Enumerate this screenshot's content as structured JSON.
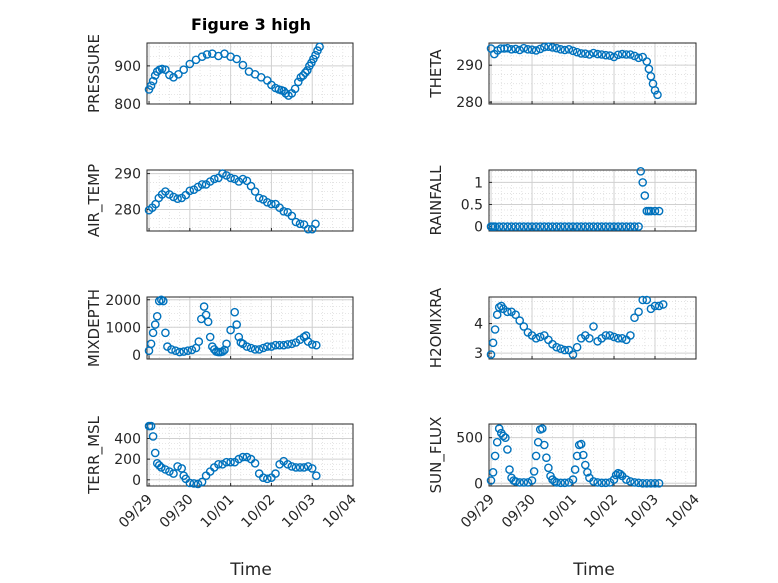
{
  "figure": {
    "title": "Figure 3 high",
    "xlabel": "Time",
    "x_ticks": [
      "09/29",
      "09/30",
      "10/01",
      "10/02",
      "10/03",
      "10/04"
    ],
    "marker_color": "#0072BD",
    "grid_color": "#dedede"
  },
  "chart_data": [
    {
      "type": "scatter",
      "ylabel": "PRESSURE",
      "ylim": [
        800,
        960
      ],
      "yticks": [
        "800",
        "900"
      ],
      "ytick_values": [
        800,
        900
      ],
      "x": [
        0.0,
        0.05,
        0.1,
        0.15,
        0.2,
        0.26,
        0.32,
        0.4,
        0.5,
        0.6,
        0.72,
        0.85,
        1.0,
        1.15,
        1.3,
        1.42,
        1.55,
        1.7,
        1.85,
        2.0,
        2.15,
        2.3,
        2.45,
        2.6,
        2.75,
        2.9,
        3.0,
        3.1,
        3.18,
        3.25,
        3.3,
        3.35,
        3.42,
        3.5,
        3.58,
        3.66,
        3.72,
        3.78,
        3.83,
        3.88,
        3.93,
        3.98,
        4.03,
        4.08,
        4.13,
        4.18
      ],
      "y": [
        838,
        848,
        860,
        875,
        885,
        890,
        892,
        890,
        876,
        870,
        878,
        890,
        905,
        916,
        924,
        930,
        932,
        926,
        932,
        924,
        918,
        902,
        885,
        878,
        870,
        862,
        850,
        842,
        838,
        836,
        834,
        828,
        822,
        828,
        840,
        858,
        870,
        875,
        882,
        888,
        900,
        908,
        918,
        928,
        940,
        950
      ]
    },
    {
      "type": "scatter",
      "ylabel": "THETA",
      "ylim": [
        279.5,
        296
      ],
      "yticks": [
        "280",
        "290"
      ],
      "ytick_values": [
        280,
        290
      ],
      "x": [
        0.0,
        0.08,
        0.16,
        0.24,
        0.32,
        0.4,
        0.5,
        0.6,
        0.7,
        0.8,
        0.9,
        1.0,
        1.1,
        1.2,
        1.3,
        1.4,
        1.5,
        1.6,
        1.7,
        1.8,
        1.9,
        2.0,
        2.1,
        2.2,
        2.3,
        2.4,
        2.5,
        2.6,
        2.7,
        2.8,
        2.9,
        3.0,
        3.1,
        3.2,
        3.3,
        3.4,
        3.5,
        3.6,
        3.7,
        3.8,
        3.85,
        3.9,
        3.95,
        4.0,
        4.06
      ],
      "y": [
        294.5,
        293.0,
        294.0,
        294.5,
        294.5,
        294.6,
        294.3,
        294.4,
        294.1,
        294.6,
        294.3,
        294.2,
        294.0,
        294.4,
        294.9,
        295.0,
        294.8,
        294.6,
        294.3,
        294.1,
        294.3,
        293.9,
        293.5,
        293.2,
        293.1,
        292.9,
        293.3,
        293.0,
        292.9,
        292.7,
        292.6,
        292.2,
        292.8,
        293.0,
        292.9,
        292.9,
        292.5,
        292.0,
        292.2,
        291.0,
        289.0,
        287.0,
        285.0,
        283.2,
        282.0
      ]
    },
    {
      "type": "scatter",
      "ylabel": "AIR_TEMP",
      "ylim": [
        274,
        291
      ],
      "yticks": [
        "280",
        "290"
      ],
      "ytick_values": [
        280,
        290
      ],
      "x": [
        0.0,
        0.08,
        0.16,
        0.24,
        0.32,
        0.4,
        0.5,
        0.6,
        0.7,
        0.8,
        0.9,
        1.0,
        1.1,
        1.2,
        1.3,
        1.4,
        1.5,
        1.6,
        1.7,
        1.8,
        1.9,
        2.0,
        2.1,
        2.2,
        2.3,
        2.4,
        2.5,
        2.6,
        2.7,
        2.8,
        2.9,
        3.0,
        3.1,
        3.2,
        3.3,
        3.4,
        3.5,
        3.6,
        3.7,
        3.8,
        3.9,
        4.0,
        4.08
      ],
      "y": [
        279.8,
        280.5,
        281.5,
        283.2,
        284.2,
        285.0,
        284.2,
        283.5,
        283.0,
        283.2,
        284.0,
        285.2,
        285.5,
        286.3,
        287.0,
        287.0,
        287.8,
        288.5,
        288.8,
        290.0,
        289.5,
        288.8,
        288.5,
        287.8,
        288.5,
        288.0,
        286.5,
        285.0,
        283.2,
        282.8,
        282.0,
        281.5,
        281.5,
        280.5,
        279.5,
        279.2,
        278.2,
        276.5,
        276.0,
        275.8,
        274.5,
        274.5,
        276.0
      ]
    },
    {
      "type": "scatter",
      "ylabel": "RAINFALL",
      "ylim": [
        -0.1,
        1.28
      ],
      "yticks": [
        "0",
        "0.5",
        "1"
      ],
      "ytick_values": [
        0,
        0.5,
        1
      ],
      "x": [
        0.0,
        0.05,
        0.1,
        0.2,
        0.3,
        0.4,
        0.5,
        0.6,
        0.7,
        0.8,
        0.9,
        1.0,
        1.1,
        1.2,
        1.3,
        1.4,
        1.5,
        1.6,
        1.7,
        1.8,
        1.9,
        2.0,
        2.1,
        2.2,
        2.3,
        2.4,
        2.5,
        2.6,
        2.7,
        2.8,
        2.9,
        3.0,
        3.1,
        3.2,
        3.3,
        3.4,
        3.5,
        3.6,
        3.65,
        3.7,
        3.75,
        3.8,
        3.85,
        3.9,
        4.0,
        4.1
      ],
      "y": [
        0,
        0,
        0,
        0,
        0,
        0,
        0,
        0,
        0,
        0,
        0,
        0,
        0,
        0,
        0,
        0,
        0,
        0,
        0,
        0,
        0,
        0,
        0,
        0,
        0,
        0,
        0,
        0,
        0,
        0,
        0,
        0,
        0,
        0,
        0,
        0,
        0,
        0,
        1.25,
        1.0,
        0.7,
        0.35,
        0.35,
        0.35,
        0.35,
        0.35
      ]
    },
    {
      "type": "scatter",
      "ylabel": "MIXDEPTH",
      "ylim": [
        -150,
        2100
      ],
      "yticks": [
        "0",
        "1000",
        "2000"
      ],
      "ytick_values": [
        0,
        1000,
        2000
      ],
      "x": [
        0.0,
        0.05,
        0.1,
        0.15,
        0.2,
        0.25,
        0.3,
        0.35,
        0.4,
        0.45,
        0.55,
        0.65,
        0.75,
        0.85,
        0.95,
        1.05,
        1.15,
        1.22,
        1.28,
        1.35,
        1.4,
        1.45,
        1.5,
        1.55,
        1.6,
        1.65,
        1.7,
        1.75,
        1.8,
        1.85,
        1.9,
        2.0,
        2.1,
        2.15,
        2.2,
        2.25,
        2.3,
        2.4,
        2.5,
        2.6,
        2.7,
        2.8,
        2.9,
        3.0,
        3.1,
        3.2,
        3.3,
        3.4,
        3.5,
        3.6,
        3.7,
        3.8,
        3.85,
        3.9,
        4.0,
        4.1
      ],
      "y": [
        150,
        400,
        800,
        1100,
        1400,
        1950,
        2000,
        1950,
        800,
        300,
        200,
        150,
        100,
        120,
        150,
        180,
        250,
        480,
        1300,
        1750,
        1450,
        1200,
        650,
        300,
        200,
        120,
        100,
        100,
        120,
        180,
        400,
        900,
        1550,
        1100,
        650,
        450,
        400,
        300,
        250,
        200,
        200,
        250,
        300,
        300,
        350,
        350,
        350,
        380,
        400,
        450,
        550,
        650,
        700,
        480,
        380,
        350
      ]
    },
    {
      "type": "scatter",
      "ylabel": "H2OMIXRA",
      "ylim": [
        2.8,
        4.9
      ],
      "yticks": [
        "3",
        "4"
      ],
      "ytick_values": [
        3,
        4
      ],
      "x": [
        0.0,
        0.05,
        0.1,
        0.15,
        0.2,
        0.25,
        0.3,
        0.4,
        0.5,
        0.6,
        0.7,
        0.8,
        0.9,
        1.0,
        1.1,
        1.2,
        1.3,
        1.4,
        1.5,
        1.6,
        1.7,
        1.8,
        1.9,
        2.0,
        2.1,
        2.2,
        2.3,
        2.4,
        2.5,
        2.6,
        2.7,
        2.8,
        2.9,
        3.0,
        3.1,
        3.2,
        3.3,
        3.4,
        3.5,
        3.6,
        3.7,
        3.8,
        3.9,
        4.0,
        4.1,
        4.2
      ],
      "y": [
        2.95,
        3.35,
        3.8,
        4.3,
        4.55,
        4.6,
        4.5,
        4.4,
        4.4,
        4.3,
        4.1,
        3.9,
        3.7,
        3.6,
        3.5,
        3.55,
        3.6,
        3.45,
        3.3,
        3.2,
        3.15,
        3.1,
        3.1,
        2.95,
        3.2,
        3.5,
        3.6,
        3.5,
        3.9,
        3.4,
        3.5,
        3.6,
        3.6,
        3.55,
        3.5,
        3.5,
        3.45,
        3.6,
        4.2,
        4.4,
        4.8,
        4.8,
        4.5,
        4.6,
        4.6,
        4.65
      ]
    },
    {
      "type": "scatter",
      "ylabel": "TERR_MSL",
      "ylim": [
        -60,
        540
      ],
      "yticks": [
        "0",
        "200",
        "400"
      ],
      "ytick_values": [
        0,
        200,
        400
      ],
      "x": [
        0.0,
        0.05,
        0.1,
        0.15,
        0.2,
        0.25,
        0.3,
        0.4,
        0.5,
        0.6,
        0.7,
        0.8,
        0.85,
        0.9,
        1.0,
        1.1,
        1.2,
        1.3,
        1.4,
        1.5,
        1.6,
        1.7,
        1.8,
        1.9,
        2.0,
        2.1,
        2.2,
        2.3,
        2.4,
        2.5,
        2.6,
        2.7,
        2.8,
        2.9,
        3.0,
        3.1,
        3.2,
        3.3,
        3.4,
        3.5,
        3.6,
        3.7,
        3.8,
        3.9,
        4.0,
        4.1
      ],
      "y": [
        520,
        520,
        420,
        260,
        160,
        140,
        120,
        100,
        80,
        60,
        130,
        110,
        40,
        10,
        -30,
        -35,
        -40,
        -20,
        40,
        80,
        120,
        150,
        150,
        170,
        170,
        170,
        200,
        220,
        220,
        200,
        160,
        60,
        20,
        10,
        20,
        60,
        150,
        180,
        150,
        130,
        120,
        120,
        120,
        130,
        110,
        40
      ]
    },
    {
      "type": "scatter",
      "ylabel": "SUN_FLUX",
      "ylim": [
        -30,
        650
      ],
      "yticks": [
        "0",
        "500"
      ],
      "ytick_values": [
        0,
        500
      ],
      "x": [
        0.0,
        0.05,
        0.1,
        0.15,
        0.2,
        0.25,
        0.3,
        0.35,
        0.4,
        0.45,
        0.5,
        0.55,
        0.6,
        0.7,
        0.8,
        0.9,
        1.0,
        1.05,
        1.1,
        1.15,
        1.2,
        1.25,
        1.3,
        1.35,
        1.4,
        1.45,
        1.5,
        1.55,
        1.6,
        1.7,
        1.8,
        1.9,
        2.0,
        2.05,
        2.1,
        2.15,
        2.2,
        2.25,
        2.3,
        2.35,
        2.4,
        2.5,
        2.6,
        2.7,
        2.8,
        2.9,
        3.0,
        3.05,
        3.1,
        3.15,
        3.2,
        3.3,
        3.4,
        3.5,
        3.6,
        3.7,
        3.8,
        3.9,
        4.0,
        4.1
      ],
      "y": [
        30,
        120,
        300,
        450,
        600,
        550,
        520,
        500,
        370,
        150,
        60,
        30,
        20,
        10,
        10,
        10,
        30,
        130,
        300,
        450,
        590,
        600,
        420,
        280,
        170,
        80,
        40,
        20,
        10,
        5,
        5,
        10,
        40,
        150,
        300,
        420,
        430,
        310,
        200,
        120,
        60,
        20,
        10,
        5,
        5,
        10,
        40,
        90,
        110,
        100,
        80,
        40,
        20,
        10,
        5,
        0,
        0,
        0,
        0,
        0
      ]
    }
  ]
}
